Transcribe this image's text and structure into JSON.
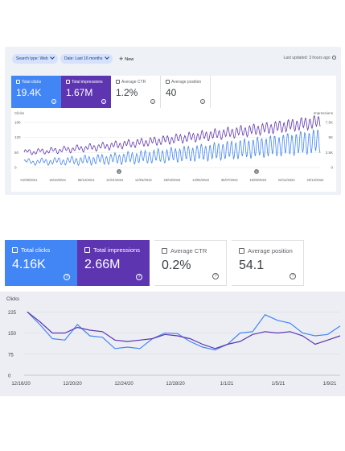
{
  "panel1": {
    "filters": [
      {
        "label": "Search type: Web"
      },
      {
        "label": "Date: Last 16 months"
      }
    ],
    "new_label": "New",
    "last_updated": "Last updated: 3 hours ago",
    "metrics": [
      {
        "label": "Total clicks",
        "value": "19.4K"
      },
      {
        "label": "Total impressions",
        "value": "1.67M"
      },
      {
        "label": "Average CTR",
        "value": "1.2%"
      },
      {
        "label": "Average position",
        "value": "40"
      }
    ],
    "chart_data": {
      "type": "line",
      "left_axis_title": "Clicks",
      "right_axis_title": "Impressions",
      "left_ticks": [
        "180",
        "120",
        "60",
        "0"
      ],
      "right_ticks": [
        "7.5K",
        "5K",
        "2.5K",
        "0"
      ],
      "x_labels": [
        "01/09/2021",
        "15/10/2021",
        "06/12/2021",
        "21/01/2022",
        "12/03/2022",
        "26/04/2022",
        "13/06/2022",
        "30/07/2022",
        "15/09/2022",
        "02/11/2022",
        "20/12/2022"
      ],
      "series_colors": {
        "clicks": "#4285f4",
        "impressions": "#5e35b1"
      }
    }
  },
  "panel2": {
    "metrics": [
      {
        "label": "Total clicks",
        "value": "4.16K"
      },
      {
        "label": "Total impressions",
        "value": "2.66M"
      },
      {
        "label": "Average CTR",
        "value": "0.2%"
      },
      {
        "label": "Average position",
        "value": "54.1"
      }
    ],
    "chart_data": {
      "type": "line",
      "ylabel": "Clicks",
      "yticks": [
        0,
        75,
        150,
        225
      ],
      "ylim": [
        0,
        240
      ],
      "x_labels": [
        "12/16/20",
        "12/20/20",
        "12/24/20",
        "12/28/20",
        "1/1/21",
        "1/5/21",
        "1/9/21"
      ],
      "series": [
        {
          "color": "#4285f4",
          "values": [
            225,
            180,
            130,
            125,
            180,
            140,
            135,
            95,
            100,
            95,
            130,
            150,
            148,
            120,
            100,
            90,
            110,
            150,
            155,
            215,
            195,
            185,
            150,
            140,
            145,
            175
          ]
        },
        {
          "color": "#5e35b1",
          "values": [
            225,
            190,
            150,
            150,
            170,
            160,
            155,
            125,
            120,
            125,
            130,
            145,
            140,
            130,
            110,
            95,
            110,
            120,
            145,
            155,
            150,
            155,
            140,
            110,
            125,
            140
          ]
        }
      ]
    }
  }
}
